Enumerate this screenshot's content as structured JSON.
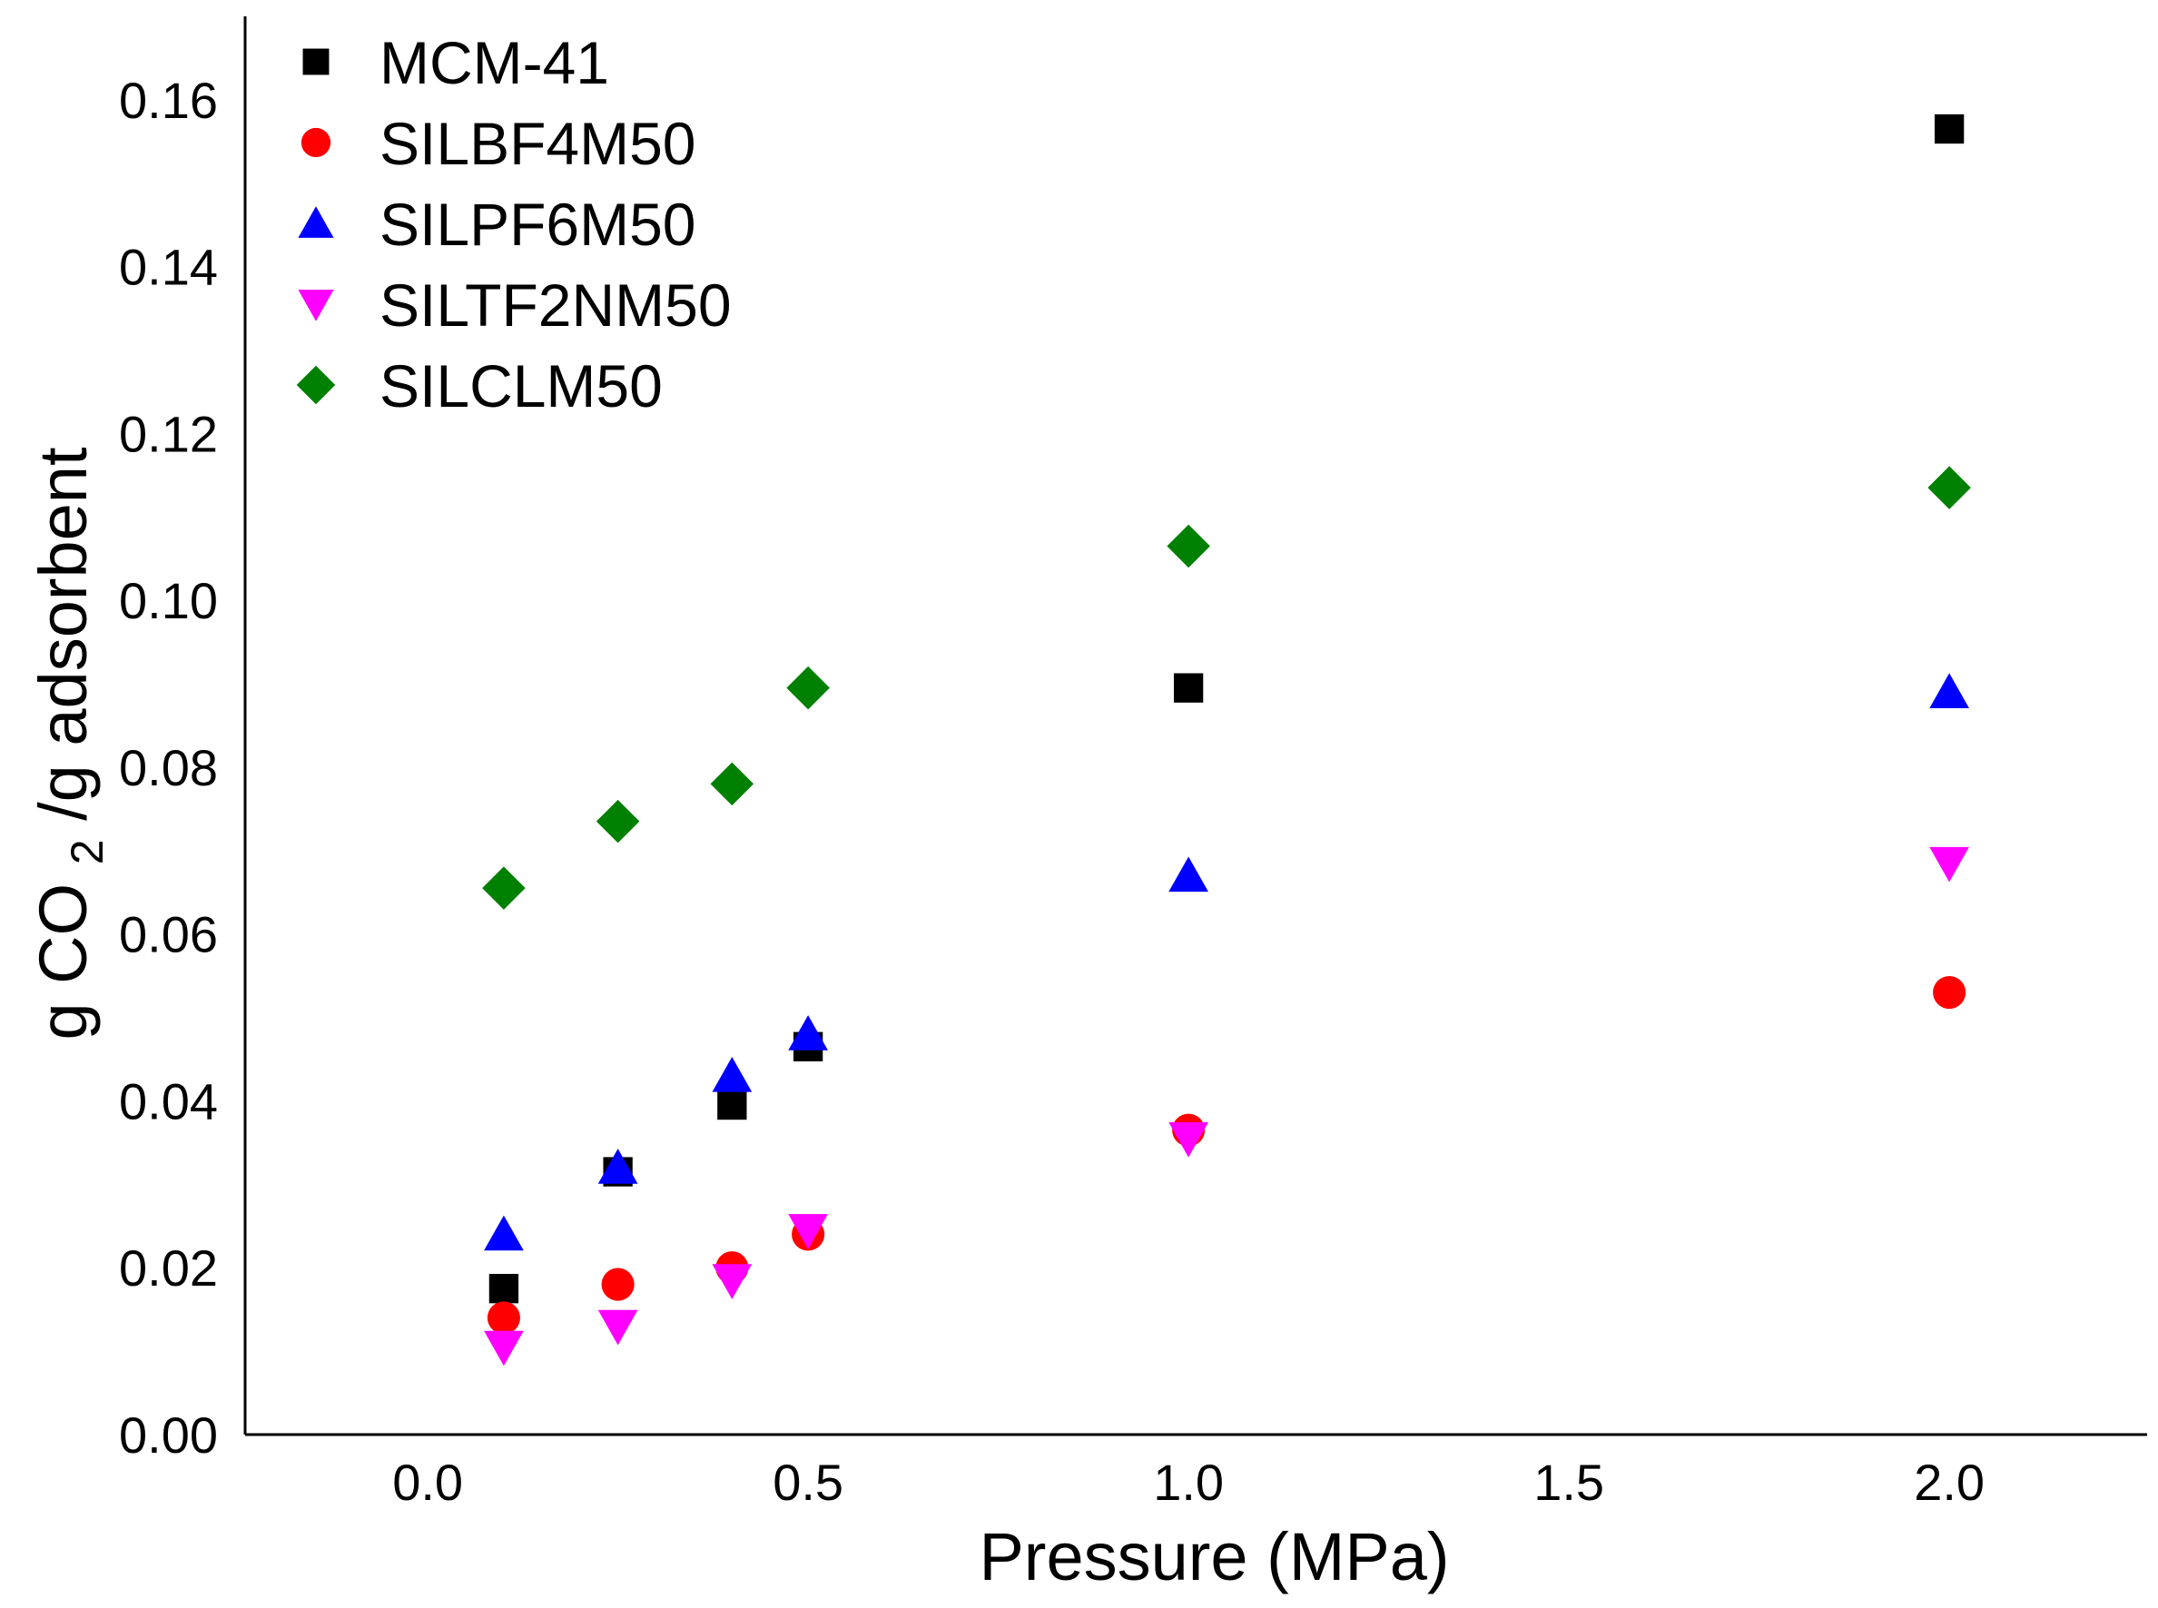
{
  "chart_data": {
    "type": "scatter",
    "title": "",
    "xlabel": "Pressure (MPa)",
    "ylabel": {
      "prefix": "g CO",
      "subscript": "2",
      "suffix": "/g adsorbent"
    },
    "xlim": [
      -0.24,
      2.26
    ],
    "ylim": [
      0.0,
      0.17
    ],
    "xticks": [
      0.0,
      0.5,
      1.0,
      1.5,
      2.0
    ],
    "xtick_labels": [
      "0.0",
      "0.5",
      "1.0",
      "1.5",
      "2.0"
    ],
    "yticks": [
      0.0,
      0.02,
      0.04,
      0.06,
      0.08,
      0.1,
      0.12,
      0.14,
      0.16
    ],
    "ytick_labels": [
      "0.00",
      "0.02",
      "0.04",
      "0.06",
      "0.08",
      "0.10",
      "0.12",
      "0.14",
      "0.16"
    ],
    "grid": false,
    "legend_position": "top-left",
    "series": [
      {
        "name": "MCM-41",
        "marker": "square",
        "color": "#000000",
        "x": [
          0.1,
          0.25,
          0.4,
          0.5,
          1.0,
          2.0
        ],
        "y": [
          0.0175,
          0.0315,
          0.0395,
          0.0465,
          0.0895,
          0.1565
        ]
      },
      {
        "name": "SILBF4M50",
        "marker": "circle",
        "color": "#ff0000",
        "x": [
          0.1,
          0.25,
          0.4,
          0.5,
          1.0,
          2.0
        ],
        "y": [
          0.014,
          0.018,
          0.02,
          0.024,
          0.0365,
          0.053
        ]
      },
      {
        "name": "SILPF6M50",
        "marker": "triangle-up",
        "color": "#0000ff",
        "x": [
          0.1,
          0.25,
          0.4,
          0.5,
          1.0,
          2.0
        ],
        "y": [
          0.024,
          0.032,
          0.043,
          0.048,
          0.067,
          0.089
        ]
      },
      {
        "name": "SILTF2NM50",
        "marker": "triangle-down",
        "color": "#ff00ff",
        "x": [
          0.1,
          0.25,
          0.4,
          0.5,
          1.0,
          2.0
        ],
        "y": [
          0.0105,
          0.013,
          0.0185,
          0.0245,
          0.0355,
          0.0685
        ]
      },
      {
        "name": "SILCLM50",
        "marker": "diamond",
        "color": "#008000",
        "x": [
          0.1,
          0.25,
          0.4,
          0.5,
          1.0,
          2.0
        ],
        "y": [
          0.0655,
          0.0735,
          0.078,
          0.0895,
          0.1065,
          0.1135
        ]
      }
    ]
  }
}
